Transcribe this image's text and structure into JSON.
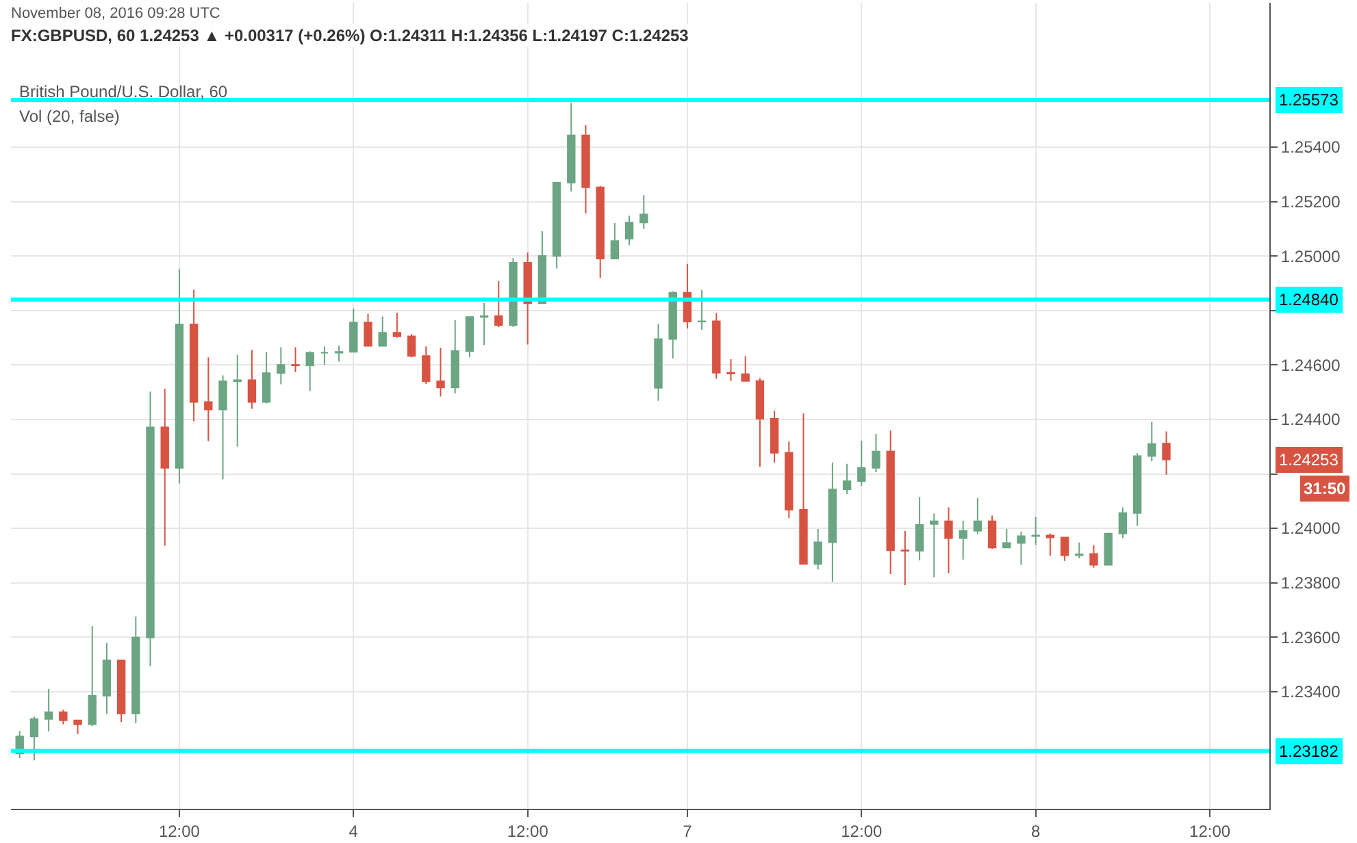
{
  "chart_data": {
    "type": "candlestick",
    "title": "FX:GBPUSD, 60 1.24253 ▲ +0.00317 (+0.26%) O:1.24311 H:1.24356 L:1.24197 C:1.24253",
    "subtitle": "British Pound/U.S. Dollar, 60",
    "annotations": [
      "November 08, 2016 09:28 UTC",
      "Vol (20, false)",
      "31:50",
      "1.24253"
    ],
    "categories": [
      null,
      null,
      null,
      null,
      null,
      null,
      null,
      null,
      null,
      null,
      null,
      "12:00",
      null,
      null,
      null,
      null,
      null,
      null,
      null,
      null,
      null,
      null,
      null,
      "4",
      null,
      null,
      null,
      null,
      null,
      null,
      null,
      null,
      null,
      null,
      null,
      "12:00",
      null,
      null,
      null,
      null,
      null,
      null,
      null,
      null,
      null,
      null,
      "7",
      null,
      null,
      null,
      null,
      null,
      null,
      null,
      null,
      null,
      null,
      null,
      "12:00",
      null,
      null,
      null,
      null,
      null,
      null,
      null,
      null,
      null,
      null,
      null,
      "8",
      null,
      null,
      null,
      null,
      null,
      null,
      null,
      null,
      null,
      null,
      null,
      "12:00",
      null,
      null
    ],
    "ohlc": [
      [
        1.23173,
        1.23256,
        1.23156,
        1.23236
      ],
      [
        1.23236,
        1.23309,
        1.23148,
        1.233
      ],
      [
        1.233,
        1.2341,
        1.23254,
        1.23325
      ],
      [
        1.23325,
        1.23334,
        1.2328,
        1.23295
      ],
      [
        1.23295,
        1.23295,
        1.23244,
        1.2328
      ],
      [
        1.2328,
        1.23641,
        1.23274,
        1.23385
      ],
      [
        1.23385,
        1.23579,
        1.23319,
        1.23515
      ],
      [
        1.23515,
        1.23515,
        1.23289,
        1.2332
      ],
      [
        1.2332,
        1.23676,
        1.23284,
        1.23599
      ],
      [
        1.23599,
        1.24502,
        1.23493,
        1.24371
      ],
      [
        1.24371,
        1.24512,
        1.23936,
        1.24222
      ],
      [
        1.24222,
        1.24952,
        1.24165,
        1.24749
      ],
      [
        1.24749,
        1.24876,
        1.24393,
        1.24464
      ],
      [
        1.24464,
        1.24628,
        1.2432,
        1.24436
      ],
      [
        1.24436,
        1.24562,
        1.2418,
        1.2454
      ],
      [
        1.2454,
        1.24637,
        1.243,
        1.24544
      ],
      [
        1.24544,
        1.24655,
        1.24439,
        1.24464
      ],
      [
        1.24464,
        1.24647,
        1.24459,
        1.2457
      ],
      [
        1.2457,
        1.24665,
        1.24529,
        1.246
      ],
      [
        1.246,
        1.24665,
        1.24573,
        1.24598
      ],
      [
        1.24598,
        1.2465,
        1.24504,
        1.24645
      ],
      [
        1.24645,
        1.24668,
        1.246,
        1.24645
      ],
      [
        1.24645,
        1.24671,
        1.24612,
        1.24648
      ],
      [
        1.24648,
        1.24807,
        1.24648,
        1.24756
      ],
      [
        1.24756,
        1.24788,
        1.2467,
        1.2467
      ],
      [
        1.2467,
        1.24778,
        1.2467,
        1.24718
      ],
      [
        1.24718,
        1.24791,
        1.247,
        1.24705
      ],
      [
        1.24705,
        1.24713,
        1.24628,
        1.24633
      ],
      [
        1.24633,
        1.24668,
        1.2453,
        1.2454
      ],
      [
        1.2454,
        1.24663,
        1.24484,
        1.24517
      ],
      [
        1.24517,
        1.24764,
        1.24495,
        1.24651
      ],
      [
        1.24651,
        1.24776,
        1.24628,
        1.24776
      ],
      [
        1.24776,
        1.24827,
        1.24673,
        1.24779
      ],
      [
        1.24779,
        1.24907,
        1.24739,
        1.24746
      ],
      [
        1.24746,
        1.24992,
        1.24739,
        1.24975
      ],
      [
        1.24975,
        1.25012,
        1.24675,
        1.24826
      ],
      [
        1.24826,
        1.25091,
        1.24826,
        1.25
      ],
      [
        1.25,
        1.25269,
        1.24954,
        1.25269
      ],
      [
        1.25269,
        1.25563,
        1.25237,
        1.25443
      ],
      [
        1.25443,
        1.2548,
        1.25157,
        1.25252
      ],
      [
        1.25252,
        1.25257,
        1.24919,
        1.2499
      ],
      [
        1.2499,
        1.25121,
        1.2499,
        1.25055
      ],
      [
        1.25064,
        1.25148,
        1.2504,
        1.25123
      ],
      [
        1.25123,
        1.25223,
        1.25099,
        1.25153
      ],
      [
        1.24516,
        1.2475,
        1.24468,
        1.24695
      ],
      [
        1.24695,
        1.2487,
        1.24624,
        1.24865
      ],
      [
        1.24865,
        1.24971,
        1.24734,
        1.24759
      ],
      [
        1.24759,
        1.24875,
        1.24729,
        1.2476
      ],
      [
        1.2476,
        1.2479,
        1.24549,
        1.24571
      ],
      [
        1.24571,
        1.24621,
        1.24541,
        1.24568
      ],
      [
        1.24566,
        1.24632,
        1.24541,
        1.24541
      ],
      [
        1.24541,
        1.24551,
        1.24226,
        1.24402
      ],
      [
        1.24402,
        1.24432,
        1.24241,
        1.24277
      ],
      [
        1.24277,
        1.24319,
        1.24037,
        1.24068
      ],
      [
        1.24068,
        1.24422,
        1.23869,
        1.23869
      ],
      [
        1.23869,
        1.23998,
        1.23849,
        1.23949
      ],
      [
        1.23949,
        1.24242,
        1.23804,
        1.24143
      ],
      [
        1.24143,
        1.24237,
        1.24126,
        1.24173
      ],
      [
        1.24173,
        1.24322,
        1.24156,
        1.24222
      ],
      [
        1.24222,
        1.24347,
        1.24206,
        1.24282
      ],
      [
        1.24282,
        1.24359,
        1.23832,
        1.23919
      ],
      [
        1.23919,
        1.2399,
        1.23791,
        1.23917
      ],
      [
        1.23917,
        1.24115,
        1.23882,
        1.24013
      ],
      [
        1.24016,
        1.24054,
        1.2382,
        1.24026
      ],
      [
        1.24026,
        1.24077,
        1.23835,
        1.23964
      ],
      [
        1.23964,
        1.24027,
        1.23885,
        1.23991
      ],
      [
        1.23991,
        1.24112,
        1.23979,
        1.24026
      ],
      [
        1.24026,
        1.24047,
        1.23924,
        1.23929
      ],
      [
        1.23929,
        1.23998,
        1.23929,
        1.23946
      ],
      [
        1.23946,
        1.23988,
        1.23865,
        1.23971
      ],
      [
        1.23971,
        1.24042,
        1.23939,
        1.23974
      ],
      [
        1.23974,
        1.23981,
        1.239,
        1.23966
      ],
      [
        1.23966,
        1.23966,
        1.2388,
        1.23901
      ],
      [
        1.23901,
        1.23948,
        1.2389,
        1.23905
      ],
      [
        1.23906,
        1.23938,
        1.23855,
        1.23866
      ],
      [
        1.23866,
        1.23981,
        1.23866,
        1.23981
      ],
      [
        1.23981,
        1.24077,
        1.23964,
        1.24056
      ],
      [
        1.24056,
        1.24276,
        1.24009,
        1.24265
      ],
      [
        1.24265,
        1.24391,
        1.24246,
        1.2431
      ],
      [
        1.24311,
        1.24356,
        1.24197,
        1.24253
      ],
      null,
      null,
      null,
      null,
      null
    ],
    "colors": [
      "#6ba583",
      "#6ba583",
      "#6ba583",
      "#d75442",
      "#d75442",
      "#6ba583",
      "#6ba583",
      "#d75442",
      "#6ba583",
      "#6ba583",
      "#d75442",
      "#6ba583",
      "#d75442",
      "#d75442",
      "#6ba583",
      "#6ba583",
      "#d75442",
      "#6ba583",
      "#6ba583",
      "#d75442",
      "#6ba583",
      "#6ba583",
      "#6ba583",
      "#6ba583",
      "#d75442",
      "#6ba583",
      "#d75442",
      "#d75442",
      "#d75442",
      "#d75442",
      "#6ba583",
      "#6ba583",
      "#6ba583",
      "#d75442",
      "#6ba583",
      "#d75442",
      "#6ba583",
      "#6ba583",
      "#6ba583",
      "#d75442",
      "#d75442",
      "#6ba583",
      "#6ba583",
      "#6ba583",
      "#6ba583",
      "#6ba583",
      "#d75442",
      "#6ba583",
      "#d75442",
      "#d75442",
      "#d75442",
      "#d75442",
      "#d75442",
      "#d75442",
      "#d75442",
      "#6ba583",
      "#6ba583",
      "#6ba583",
      "#6ba583",
      "#6ba583",
      "#d75442",
      "#d75442",
      "#6ba583",
      "#6ba583",
      "#d75442",
      "#6ba583",
      "#6ba583",
      "#d75442",
      "#6ba583",
      "#6ba583",
      "#6ba583",
      "#d75442",
      "#d75442",
      "#6ba583",
      "#d75442",
      "#6ba583",
      "#6ba583",
      "#6ba583",
      "#6ba583",
      "#d75442",
      null,
      null,
      null,
      null,
      null
    ],
    "ylim": [
      1.2297,
      1.2593
    ],
    "yticks": [
      {
        "value": 1.234,
        "label": "1.23400"
      },
      {
        "value": 1.236,
        "label": "1.23600"
      },
      {
        "value": 1.238,
        "label": "1.23800"
      },
      {
        "value": 1.24,
        "label": "1.24000"
      },
      {
        "value": 1.242,
        "label": null
      },
      {
        "value": 1.244,
        "label": "1.24400"
      },
      {
        "value": 1.246,
        "label": "1.24600"
      },
      {
        "value": 1.248,
        "label": null
      },
      {
        "value": 1.25,
        "label": "1.25000"
      },
      {
        "value": 1.252,
        "label": "1.25200"
      },
      {
        "value": 1.254,
        "label": "1.25400"
      }
    ],
    "ref_lines": [
      {
        "axis": "y",
        "value": 1.25573,
        "label": "1.25573",
        "color": "#00ffff"
      },
      {
        "axis": "y",
        "value": 1.2484,
        "label": "1.24840",
        "color": "#00ffff"
      },
      {
        "axis": "y",
        "value": 1.23182,
        "label": "1.23182",
        "color": "#00ffff"
      }
    ],
    "grid": true
  }
}
